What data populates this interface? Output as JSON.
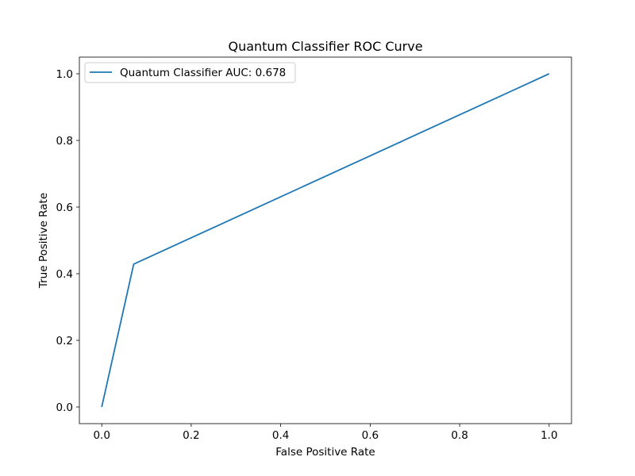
{
  "chart_data": {
    "type": "line",
    "title": "Quantum Classifier ROC Curve",
    "xlabel": "False Positive Rate",
    "ylabel": "True Positive Rate",
    "xlim": [
      -0.05,
      1.05
    ],
    "ylim": [
      -0.05,
      1.05
    ],
    "xticks": [
      0.0,
      0.2,
      0.4,
      0.6,
      0.8,
      1.0
    ],
    "yticks": [
      0.0,
      0.2,
      0.4,
      0.6,
      0.8,
      1.0
    ],
    "xtick_labels": [
      "0.0",
      "0.2",
      "0.4",
      "0.6",
      "0.8",
      "1.0"
    ],
    "ytick_labels": [
      "0.0",
      "0.2",
      "0.4",
      "0.6",
      "0.8",
      "1.0"
    ],
    "grid": false,
    "legend_position": "top-left",
    "series": [
      {
        "name": "Quantum Classifier AUC: 0.678",
        "color": "#1f77b4",
        "x": [
          0.0,
          0.0714,
          1.0
        ],
        "y": [
          0.0,
          0.4286,
          1.0
        ]
      }
    ]
  }
}
